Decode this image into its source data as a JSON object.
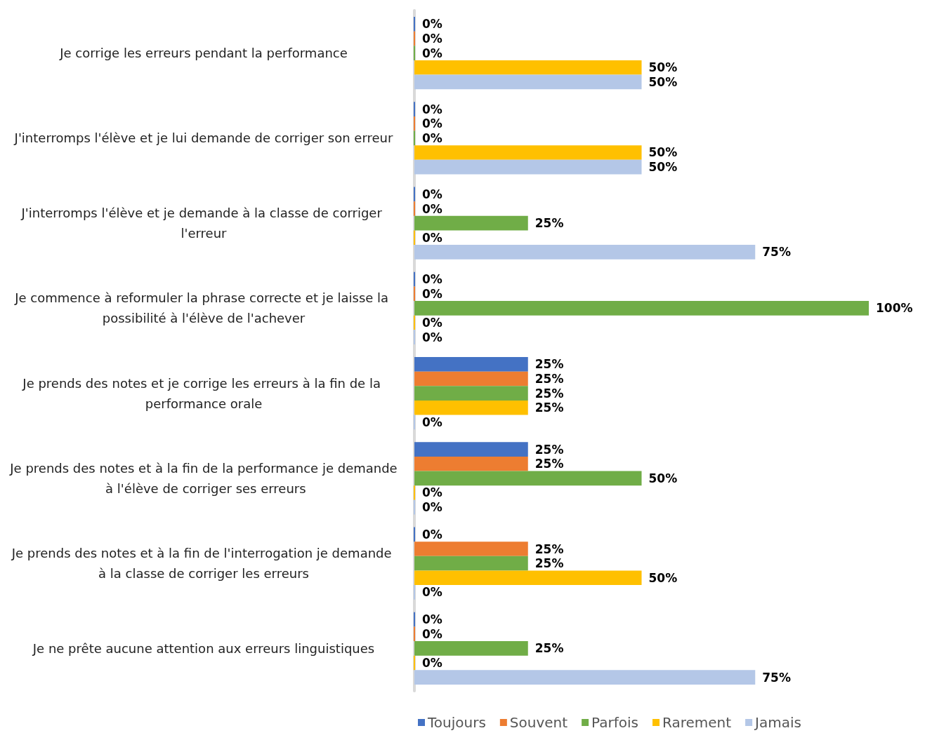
{
  "chart_data": {
    "type": "bar",
    "orientation": "horizontal",
    "legend": "bottom",
    "grid": false,
    "categories": [
      "Je corrige les erreurs pendant la performance",
      "J'interromps l'élève et je lui demande de corriger son erreur",
      "J'interromps l'élève et je demande à la classe de corriger l'erreur",
      "Je commence à reformuler la phrase correcte et je laisse la possibilité à l'élève de l'achever",
      "Je prends des notes et je corrige les erreurs à la fin de la performance orale",
      "Je prends des notes et à la fin de la performance je demande à l'élève de corriger ses erreurs",
      "Je prends des notes et à la fin de l'interrogation je demande à la classe de corriger les erreurs",
      "Je ne prête aucune attention aux erreurs linguistiques"
    ],
    "series": [
      {
        "name": "Toujours",
        "color": "#4472c4",
        "values": [
          0,
          0,
          0,
          0,
          25,
          25,
          0,
          0
        ],
        "value_labels": [
          "0%",
          "0%",
          "0%",
          "0%",
          "25%",
          "25%",
          "0%",
          "0%"
        ]
      },
      {
        "name": "Souvent",
        "color": "#ed7d31",
        "values": [
          0,
          0,
          0,
          0,
          25,
          25,
          25,
          0
        ],
        "value_labels": [
          "0%",
          "0%",
          "0%",
          "0%",
          "25%",
          "25%",
          "25%",
          "0%"
        ]
      },
      {
        "name": "Parfois",
        "color": "#70ad47",
        "values": [
          0,
          0,
          25,
          100,
          25,
          50,
          25,
          25
        ],
        "value_labels": [
          "0%",
          "0%",
          "25%",
          "100%",
          "25%",
          "50%",
          "25%",
          "25%"
        ]
      },
      {
        "name": "Rarement",
        "color": "#ffc000",
        "values": [
          50,
          50,
          0,
          0,
          25,
          0,
          50,
          0
        ],
        "value_labels": [
          "50%",
          "50%",
          "0%",
          "0%",
          "25%",
          "0%",
          "50%",
          "0%"
        ]
      },
      {
        "name": "Jamais",
        "color": "#b4c7e7",
        "values": [
          50,
          50,
          75,
          0,
          0,
          0,
          0,
          75
        ],
        "value_labels": [
          "50%",
          "50%",
          "75%",
          "0%",
          "0%",
          "0%",
          "0%",
          "75%"
        ]
      }
    ]
  }
}
